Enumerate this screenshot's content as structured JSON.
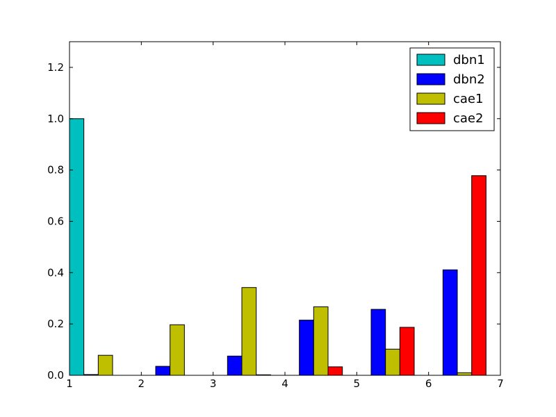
{
  "chart_data": {
    "type": "bar",
    "title": "",
    "xlabel": "",
    "ylabel": "",
    "xlim": [
      1,
      7
    ],
    "ylim": [
      0,
      1.3
    ],
    "xticks": [
      "1",
      "2",
      "3",
      "4",
      "5",
      "6",
      "7"
    ],
    "yticks": [
      "0.0",
      "0.2",
      "0.4",
      "0.6",
      "0.8",
      "1.0",
      "1.2"
    ],
    "grid": false,
    "legend_position": "top-right",
    "group_starts": [
      1,
      2,
      3,
      4,
      5,
      6
    ],
    "bar_width": 0.2,
    "series": [
      {
        "name": "dbn1",
        "color": "#00bfbf",
        "values": [
          1.0,
          0.0,
          0.0,
          0.0,
          0.0,
          0.0
        ]
      },
      {
        "name": "dbn2",
        "color": "#0000ff",
        "values": [
          0.003,
          0.035,
          0.075,
          0.215,
          0.257,
          0.411
        ]
      },
      {
        "name": "cae1",
        "color": "#bfbf00",
        "values": [
          0.078,
          0.197,
          0.342,
          0.267,
          0.102,
          0.01
        ]
      },
      {
        "name": "cae2",
        "color": "#ff0000",
        "values": [
          0.0,
          0.0,
          0.002,
          0.033,
          0.187,
          0.778
        ]
      }
    ]
  }
}
